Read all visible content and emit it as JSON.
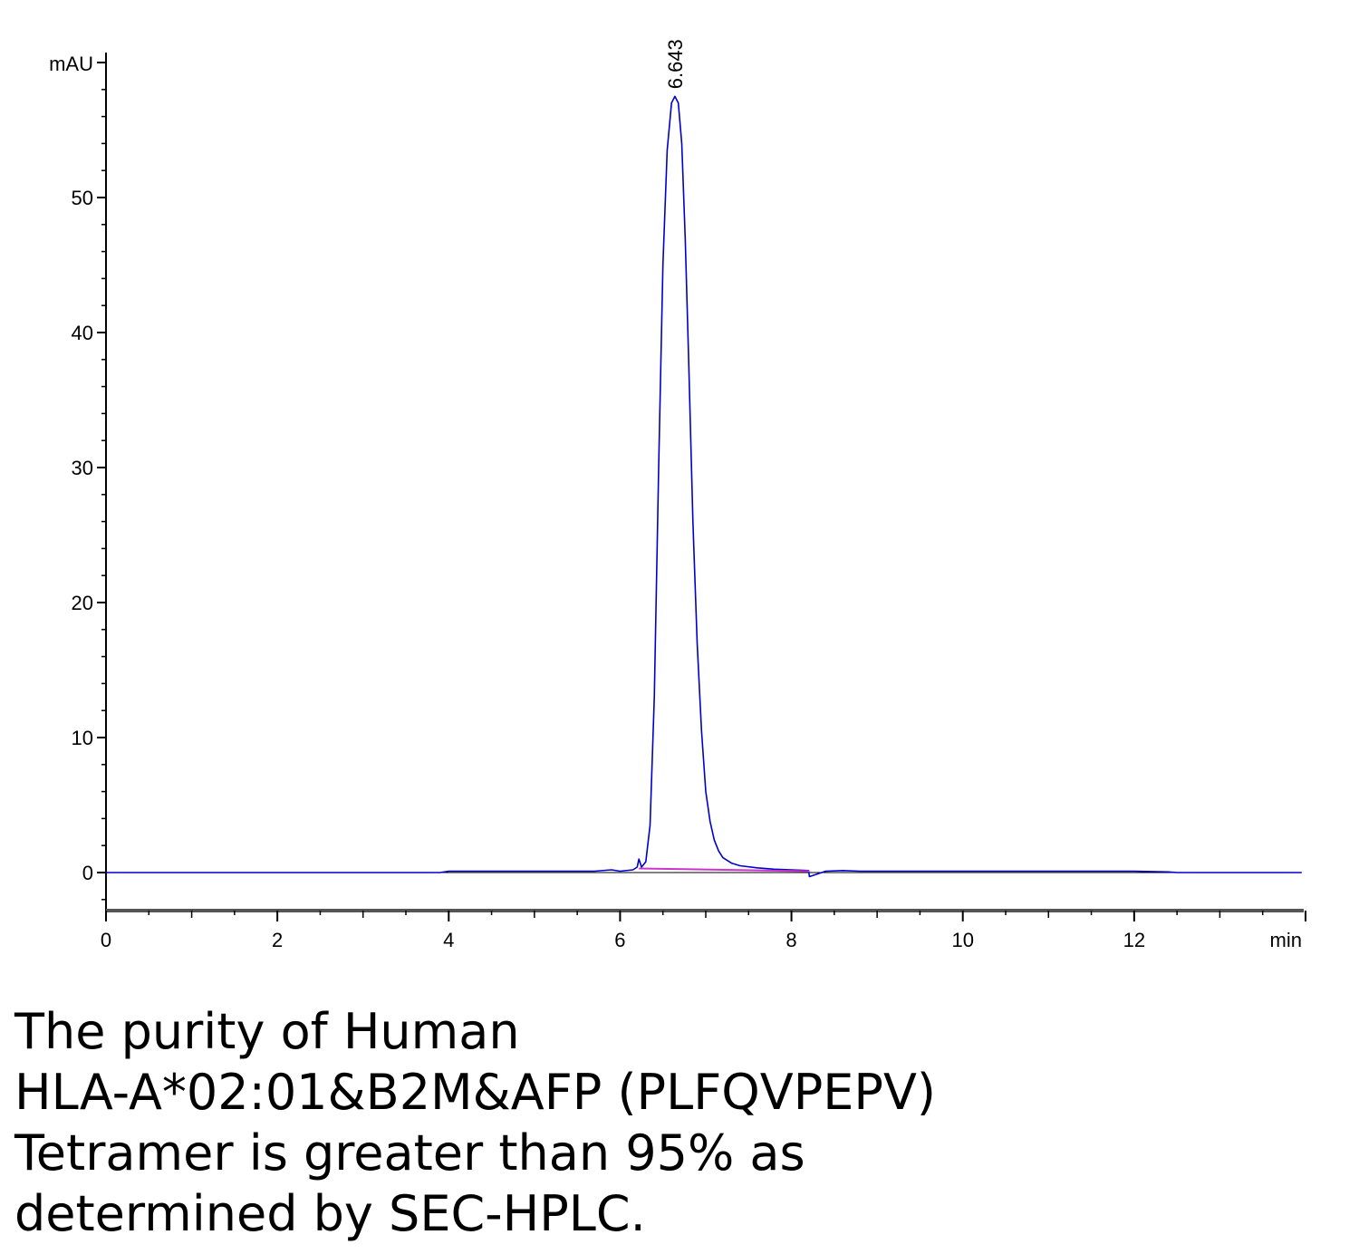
{
  "chart_data": {
    "type": "line",
    "title": "",
    "xlabel": "min",
    "ylabel": "mAU",
    "xlim": [
      0,
      14
    ],
    "ylim": [
      -3,
      60
    ],
    "x_ticks": [
      0,
      2,
      4,
      6,
      8,
      10,
      12
    ],
    "y_ticks": [
      0,
      10,
      20,
      30,
      40,
      50
    ],
    "grid": false,
    "legend": "none",
    "series": [
      {
        "color": "#0000cc",
        "x": [
          0,
          3.9,
          4.0,
          5.7,
          5.9,
          6.0,
          6.15,
          6.2,
          6.22,
          6.25,
          6.3,
          6.35,
          6.4,
          6.45,
          6.5,
          6.55,
          6.6,
          6.64,
          6.68,
          6.72,
          6.76,
          6.8,
          6.85,
          6.9,
          6.95,
          7.0,
          7.05,
          7.1,
          7.15,
          7.2,
          7.3,
          7.4,
          7.6,
          7.8,
          8.0,
          8.2,
          8.21,
          8.4,
          8.6,
          8.8,
          9.0,
          10.0,
          11.0,
          12.0,
          12.4,
          12.5,
          13.95
        ],
        "y": [
          0,
          0,
          0.1,
          0.1,
          0.2,
          0.1,
          0.2,
          0.4,
          1.0,
          0.4,
          0.8,
          3.5,
          13.0,
          30.0,
          45.0,
          53.5,
          57.0,
          57.5,
          57.0,
          54.0,
          47.0,
          38.0,
          26.0,
          17.0,
          10.5,
          6.0,
          3.8,
          2.4,
          1.6,
          1.1,
          0.7,
          0.5,
          0.35,
          0.25,
          0.2,
          0.15,
          -0.3,
          0.1,
          0.15,
          0.1,
          0.1,
          0.1,
          0.1,
          0.1,
          0.05,
          0,
          0
        ]
      },
      {
        "color": "#cc33cc",
        "x": [
          6.22,
          8.21
        ],
        "y": [
          0.3,
          0.1
        ]
      }
    ],
    "annotations": [
      {
        "label": "6.643",
        "x": 6.643,
        "y": 57.5
      }
    ]
  },
  "caption": [
    "The purity of Human",
    "HLA-A*02:01&B2M&AFP (PLFQVPEPV)",
    "Tetramer is greater than 95% as",
    "determined by SEC-HPLC."
  ]
}
